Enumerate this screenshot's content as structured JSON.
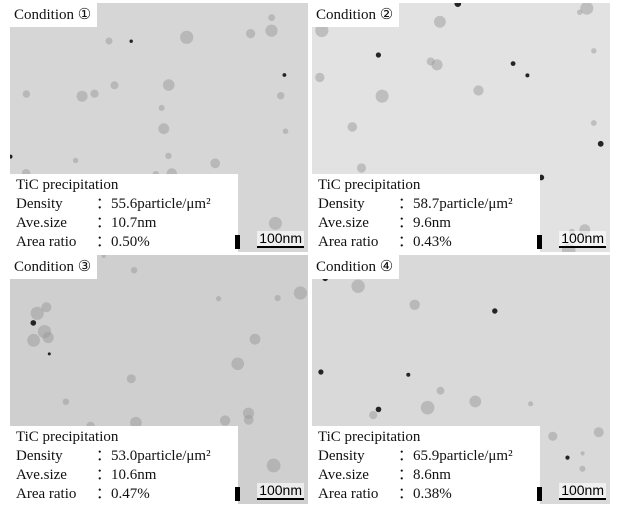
{
  "panels": [
    {
      "condition": "Condition ①",
      "heading": "TiC precipitation",
      "rows": [
        [
          "Density",
          "：55.6particle/μm²"
        ],
        [
          "Ave.size",
          "：10.7nm"
        ],
        [
          "Area ratio",
          "：0.50%"
        ]
      ],
      "scale": "100nm"
    },
    {
      "condition": "Condition ②",
      "heading": "TiC precipitation",
      "rows": [
        [
          "Density",
          "：58.7particle/μm²"
        ],
        [
          "Ave.size",
          "：9.6nm"
        ],
        [
          "Area ratio",
          "：0.43%"
        ]
      ],
      "scale": "100nm"
    },
    {
      "condition": "Condition ③",
      "heading": "TiC precipitation",
      "rows": [
        [
          "Density",
          "：53.0particle/μm²"
        ],
        [
          "Ave.size",
          "：10.6nm"
        ],
        [
          "Area ratio",
          "：0.47%"
        ]
      ],
      "scale": "100nm"
    },
    {
      "condition": "Condition ④",
      "heading": "TiC precipitation",
      "rows": [
        [
          "Density",
          "：65.9particle/μm²"
        ],
        [
          "Ave.size",
          "：8.6nm"
        ],
        [
          "Area ratio",
          "：0.38%"
        ]
      ],
      "scale": "100nm"
    }
  ]
}
